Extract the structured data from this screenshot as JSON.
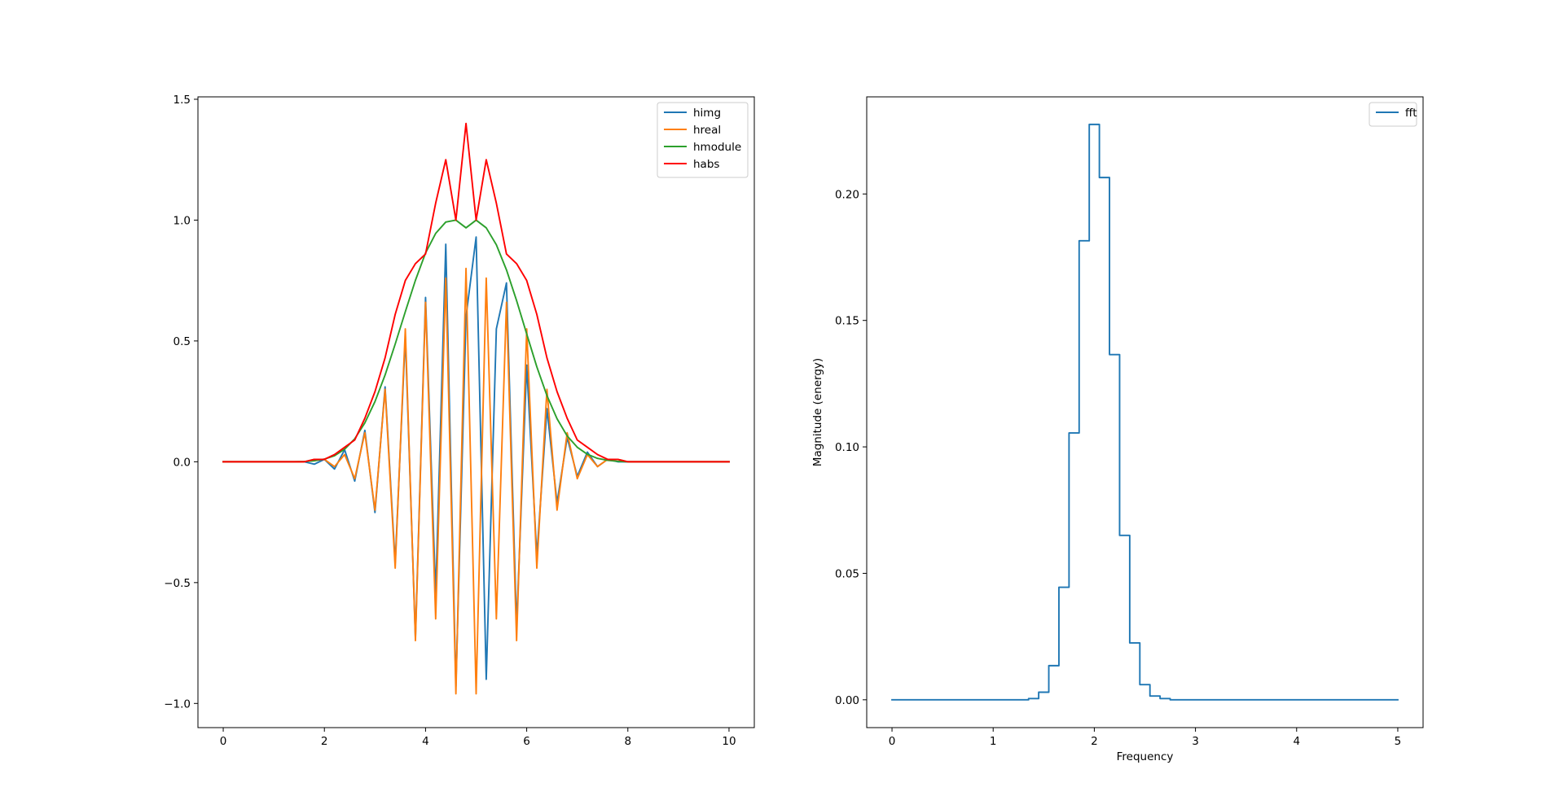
{
  "chart_data": [
    {
      "type": "line",
      "title": "",
      "xlabel": "",
      "ylabel": "",
      "xlim": [
        -0.5,
        10.5
      ],
      "ylim": [
        -1.1,
        1.51
      ],
      "grid": false,
      "legend_position": "top-right",
      "x_ticks": [
        0,
        2,
        4,
        6,
        8,
        10
      ],
      "x_tick_labels": [
        "0",
        "2",
        "4",
        "6",
        "8",
        "10"
      ],
      "y_ticks": [
        -1.0,
        -0.5,
        0.0,
        0.5,
        1.0,
        1.5
      ],
      "y_tick_labels": [
        "−1.0",
        "−0.5",
        "0.0",
        "0.5",
        "1.0",
        "1.5"
      ],
      "x": [
        0.0,
        0.2,
        0.4,
        0.6,
        0.8,
        1.0,
        1.2,
        1.4,
        1.6,
        1.8,
        2.0,
        2.2,
        2.4,
        2.6,
        2.8,
        3.0,
        3.2,
        3.4,
        3.6,
        3.8,
        4.0,
        4.2,
        4.4,
        4.6,
        4.8,
        5.0,
        5.2,
        5.4,
        5.6,
        5.8,
        6.0,
        6.2,
        6.4,
        6.6,
        6.8,
        7.0,
        7.2,
        7.4,
        7.6,
        7.8,
        8.0,
        8.2,
        8.4,
        8.6,
        8.8,
        9.0,
        9.2,
        9.4,
        9.6,
        9.8,
        10.0
      ],
      "series": [
        {
          "name": "himg",
          "color": "#1f77b4",
          "values": [
            0.0,
            0.0,
            0.0,
            0.0,
            0.0,
            0.0,
            0.0,
            0.0,
            0.0,
            -0.01,
            0.01,
            -0.03,
            0.05,
            -0.08,
            0.13,
            -0.21,
            0.31,
            -0.42,
            0.52,
            -0.73,
            0.68,
            -0.55,
            0.9,
            -0.93,
            0.6,
            0.93,
            -0.9,
            0.55,
            0.74,
            -0.68,
            0.4,
            -0.39,
            0.22,
            -0.17,
            0.1,
            -0.06,
            0.04,
            -0.02,
            0.01,
            0.0,
            0.0,
            0.0,
            0.0,
            0.0,
            0.0,
            0.0,
            0.0,
            0.0,
            0.0,
            0.0,
            0.0
          ]
        },
        {
          "name": "hreal",
          "color": "#ff7f0e",
          "values": [
            0.0,
            0.0,
            0.0,
            0.0,
            0.0,
            0.0,
            0.0,
            0.0,
            0.0,
            0.01,
            0.01,
            -0.02,
            0.03,
            -0.07,
            0.12,
            -0.2,
            0.3,
            -0.44,
            0.55,
            -0.74,
            0.66,
            -0.65,
            0.76,
            -0.96,
            0.8,
            -0.96,
            0.76,
            -0.65,
            0.66,
            -0.74,
            0.55,
            -0.44,
            0.3,
            -0.2,
            0.12,
            -0.07,
            0.03,
            -0.02,
            0.01,
            0.01,
            0.0,
            0.0,
            0.0,
            0.0,
            0.0,
            0.0,
            0.0,
            0.0,
            0.0,
            0.0,
            0.0
          ]
        },
        {
          "name": "hmodule",
          "color": "#2ca02c",
          "values": [
            0.0,
            0.0,
            0.0,
            0.0,
            0.0,
            0.0,
            0.0,
            0.0,
            0.001,
            0.004,
            0.011,
            0.025,
            0.052,
            0.095,
            0.161,
            0.249,
            0.359,
            0.487,
            0.621,
            0.751,
            0.864,
            0.945,
            0.992,
            1.0,
            0.968,
            1.0,
            0.968,
            0.898,
            0.794,
            0.667,
            0.529,
            0.393,
            0.274,
            0.178,
            0.107,
            0.06,
            0.031,
            0.014,
            0.006,
            0.002,
            0.0,
            0.0,
            0.0,
            0.0,
            0.0,
            0.0,
            0.0,
            0.0,
            0.0,
            0.0,
            0.0
          ]
        },
        {
          "name": "habs",
          "color": "#ff0000",
          "values": [
            0.0,
            0.0,
            0.0,
            0.0,
            0.0,
            0.0,
            0.0,
            0.0,
            0.0,
            0.01,
            0.01,
            0.03,
            0.06,
            0.09,
            0.18,
            0.29,
            0.43,
            0.61,
            0.75,
            0.82,
            0.86,
            1.07,
            1.25,
            1.0,
            1.4,
            1.0,
            1.25,
            1.07,
            0.86,
            0.82,
            0.75,
            0.61,
            0.43,
            0.29,
            0.18,
            0.09,
            0.06,
            0.03,
            0.01,
            0.01,
            0.0,
            0.0,
            0.0,
            0.0,
            0.0,
            0.0,
            0.0,
            0.0,
            0.0,
            0.0,
            0.0
          ]
        }
      ]
    },
    {
      "type": "line",
      "title": "",
      "xlabel": "Frequency",
      "ylabel": "Magnitude (energy)",
      "xlim": [
        -0.25,
        5.25
      ],
      "ylim": [
        -0.011,
        0.2384
      ],
      "grid": false,
      "legend_position": "top-right",
      "x_ticks": [
        0,
        1,
        2,
        3,
        4,
        5
      ],
      "x_tick_labels": [
        "0",
        "1",
        "2",
        "3",
        "4",
        "5"
      ],
      "y_ticks": [
        0.0,
        0.05,
        0.1,
        0.15,
        0.2
      ],
      "y_tick_labels": [
        "0.00",
        "0.05",
        "0.10",
        "0.15",
        "0.20"
      ],
      "series": [
        {
          "name": "fft",
          "color": "#1f77b4",
          "drawstyle": "steps",
          "x": [
            0.0,
            1.35,
            1.45,
            1.55,
            1.65,
            1.75,
            1.85,
            1.95,
            2.05,
            2.15,
            2.25,
            2.35,
            2.45,
            2.55,
            2.65,
            2.75,
            5.0
          ],
          "values": [
            0.0,
            0.0005,
            0.003,
            0.0135,
            0.0445,
            0.1055,
            0.1815,
            0.2275,
            0.2065,
            0.1365,
            0.065,
            0.0225,
            0.006,
            0.0015,
            0.0005,
            0.0,
            0.0
          ]
        }
      ]
    }
  ]
}
